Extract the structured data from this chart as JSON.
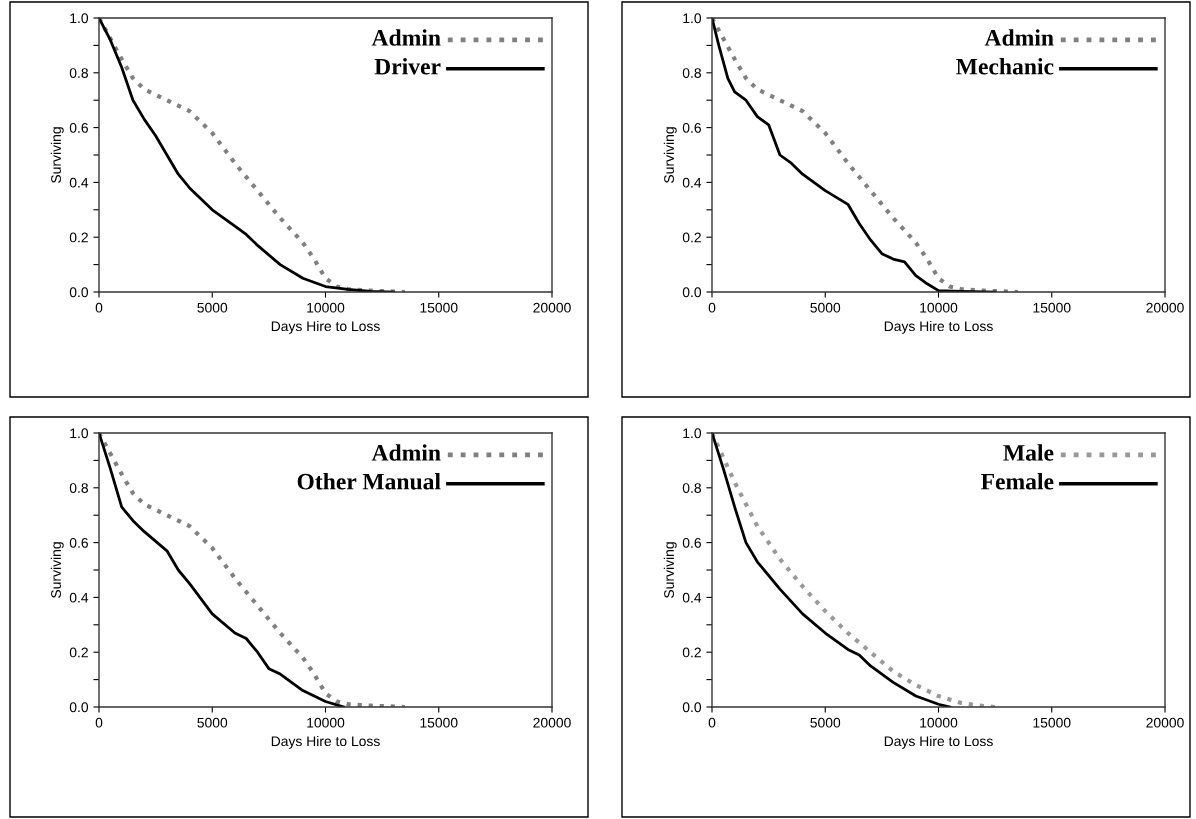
{
  "chart_data": [
    {
      "type": "line",
      "xlabel": "Days Hire to Loss",
      "ylabel": "Surviving",
      "xlim": [
        0,
        20000
      ],
      "ylim": [
        0,
        1
      ],
      "xticks": [
        0,
        5000,
        10000,
        15000,
        20000
      ],
      "yticks": [
        {
          "value": 0,
          "label": "0.0"
        },
        {
          "value": 0.1,
          "label": null
        },
        {
          "value": 0.2,
          "label": "0.2"
        },
        {
          "value": 0.3,
          "label": null
        },
        {
          "value": 0.4,
          "label": "0.4"
        },
        {
          "value": 0.5,
          "label": null
        },
        {
          "value": 0.6,
          "label": "0.6"
        },
        {
          "value": 0.7,
          "label": null
        },
        {
          "value": 0.8,
          "label": "0.8"
        },
        {
          "value": 0.9,
          "label": null
        },
        {
          "value": 1,
          "label": "1.0"
        }
      ],
      "grid": false,
      "legend": "top right",
      "series": [
        {
          "name": "Admin",
          "color": "#808080",
          "line_style": "dotted",
          "x": [
            0,
            1000,
            1500,
            2000,
            3000,
            4000,
            5000,
            6000,
            7000,
            8000,
            9000,
            9500,
            10000,
            10500,
            11000,
            12000,
            13500
          ],
          "values": [
            1.0,
            0.85,
            0.78,
            0.74,
            0.7,
            0.66,
            0.58,
            0.47,
            0.37,
            0.27,
            0.18,
            0.12,
            0.05,
            0.02,
            0.01,
            0.005,
            0.0
          ]
        },
        {
          "name": "Driver",
          "color": "#000000",
          "line_style": "solid",
          "x": [
            0,
            500,
            1000,
            1500,
            2000,
            2500,
            3000,
            3500,
            4000,
            5000,
            6000,
            6500,
            7000,
            8000,
            9000,
            10000,
            11000,
            12000,
            13000
          ],
          "values": [
            1.0,
            0.92,
            0.82,
            0.7,
            0.63,
            0.57,
            0.5,
            0.43,
            0.38,
            0.3,
            0.24,
            0.21,
            0.17,
            0.1,
            0.05,
            0.02,
            0.01,
            0.002,
            0.0
          ]
        }
      ]
    },
    {
      "type": "line",
      "xlabel": "Days Hire to Loss",
      "ylabel": "Surviving",
      "xlim": [
        0,
        20000
      ],
      "ylim": [
        0,
        1
      ],
      "xticks": [
        0,
        5000,
        10000,
        15000,
        20000
      ],
      "yticks": [
        {
          "value": 0,
          "label": "0.0"
        },
        {
          "value": 0.1,
          "label": null
        },
        {
          "value": 0.2,
          "label": "0.2"
        },
        {
          "value": 0.3,
          "label": null
        },
        {
          "value": 0.4,
          "label": "0.4"
        },
        {
          "value": 0.5,
          "label": null
        },
        {
          "value": 0.6,
          "label": "0.6"
        },
        {
          "value": 0.7,
          "label": null
        },
        {
          "value": 0.8,
          "label": "0.8"
        },
        {
          "value": 0.9,
          "label": null
        },
        {
          "value": 1,
          "label": "1.0"
        }
      ],
      "grid": false,
      "legend": "top right",
      "series": [
        {
          "name": "Admin",
          "color": "#808080",
          "line_style": "dotted",
          "x": [
            0,
            1000,
            1500,
            2000,
            3000,
            4000,
            5000,
            6000,
            7000,
            8000,
            9000,
            9500,
            10000,
            10500,
            11000,
            12000,
            13500
          ],
          "values": [
            1.0,
            0.85,
            0.78,
            0.74,
            0.7,
            0.66,
            0.58,
            0.47,
            0.37,
            0.27,
            0.18,
            0.12,
            0.05,
            0.02,
            0.01,
            0.005,
            0.0
          ]
        },
        {
          "name": "Mechanic",
          "color": "#000000",
          "line_style": "solid",
          "x": [
            0,
            300,
            700,
            1000,
            1500,
            2000,
            2500,
            3000,
            3500,
            4000,
            5000,
            6000,
            6500,
            7000,
            7500,
            8000,
            8500,
            9000,
            9500,
            10000,
            11000,
            12500
          ],
          "values": [
            1.0,
            0.9,
            0.78,
            0.73,
            0.7,
            0.64,
            0.61,
            0.5,
            0.47,
            0.43,
            0.37,
            0.32,
            0.25,
            0.19,
            0.14,
            0.12,
            0.11,
            0.06,
            0.03,
            0.005,
            0.002,
            0.0
          ]
        }
      ]
    },
    {
      "type": "line",
      "xlabel": "Days Hire to Loss",
      "ylabel": "Surviving",
      "xlim": [
        0,
        20000
      ],
      "ylim": [
        0,
        1
      ],
      "xticks": [
        0,
        5000,
        10000,
        15000,
        20000
      ],
      "yticks": [
        {
          "value": 0,
          "label": "0.0"
        },
        {
          "value": 0.1,
          "label": null
        },
        {
          "value": 0.2,
          "label": "0.2"
        },
        {
          "value": 0.3,
          "label": null
        },
        {
          "value": 0.4,
          "label": "0.4"
        },
        {
          "value": 0.5,
          "label": null
        },
        {
          "value": 0.6,
          "label": "0.6"
        },
        {
          "value": 0.7,
          "label": null
        },
        {
          "value": 0.8,
          "label": "0.8"
        },
        {
          "value": 0.9,
          "label": null
        },
        {
          "value": 1,
          "label": "1.0"
        }
      ],
      "grid": false,
      "legend": "top right",
      "series": [
        {
          "name": "Admin",
          "color": "#808080",
          "line_style": "dotted",
          "x": [
            0,
            1000,
            1500,
            2000,
            3000,
            4000,
            5000,
            6000,
            7000,
            8000,
            9000,
            9500,
            10000,
            10500,
            11000,
            12000,
            13500
          ],
          "values": [
            1.0,
            0.85,
            0.78,
            0.74,
            0.7,
            0.66,
            0.58,
            0.47,
            0.37,
            0.27,
            0.18,
            0.12,
            0.05,
            0.02,
            0.01,
            0.005,
            0.0
          ]
        },
        {
          "name": "Other Manual",
          "color": "#000000",
          "line_style": "solid",
          "x": [
            0,
            500,
            1000,
            1500,
            2000,
            3000,
            3500,
            4000,
            5000,
            6000,
            6500,
            7000,
            7500,
            8000,
            9000,
            10000,
            10800
          ],
          "values": [
            1.0,
            0.87,
            0.73,
            0.68,
            0.64,
            0.57,
            0.5,
            0.45,
            0.34,
            0.27,
            0.25,
            0.2,
            0.14,
            0.12,
            0.06,
            0.02,
            0.0
          ]
        }
      ]
    },
    {
      "type": "line",
      "xlabel": "Days Hire to Loss",
      "ylabel": "Surviving",
      "xlim": [
        0,
        20000
      ],
      "ylim": [
        0,
        1
      ],
      "xticks": [
        0,
        5000,
        10000,
        15000,
        20000
      ],
      "yticks": [
        {
          "value": 0,
          "label": "0.0"
        },
        {
          "value": 0.1,
          "label": null
        },
        {
          "value": 0.2,
          "label": "0.2"
        },
        {
          "value": 0.3,
          "label": null
        },
        {
          "value": 0.4,
          "label": "0.4"
        },
        {
          "value": 0.5,
          "label": null
        },
        {
          "value": 0.6,
          "label": "0.6"
        },
        {
          "value": 0.7,
          "label": null
        },
        {
          "value": 0.8,
          "label": "0.8"
        },
        {
          "value": 0.9,
          "label": null
        },
        {
          "value": 1,
          "label": "1.0"
        }
      ],
      "grid": false,
      "legend": "top right",
      "series": [
        {
          "name": "Male",
          "color": "#999999",
          "line_style": "dotted",
          "x": [
            0,
            1000,
            2000,
            3000,
            4000,
            5000,
            6000,
            7000,
            8000,
            9000,
            10000,
            11000,
            12000,
            12500
          ],
          "values": [
            1.0,
            0.82,
            0.66,
            0.54,
            0.44,
            0.35,
            0.27,
            0.2,
            0.13,
            0.08,
            0.04,
            0.015,
            0.003,
            0.0
          ]
        },
        {
          "name": "Female",
          "color": "#000000",
          "line_style": "solid",
          "x": [
            0,
            500,
            1000,
            1500,
            2000,
            3000,
            4000,
            5000,
            6000,
            6500,
            7000,
            8000,
            9000,
            10000,
            10500
          ],
          "values": [
            1.0,
            0.87,
            0.73,
            0.6,
            0.53,
            0.43,
            0.34,
            0.27,
            0.21,
            0.19,
            0.15,
            0.09,
            0.04,
            0.01,
            0.0
          ]
        }
      ]
    }
  ]
}
